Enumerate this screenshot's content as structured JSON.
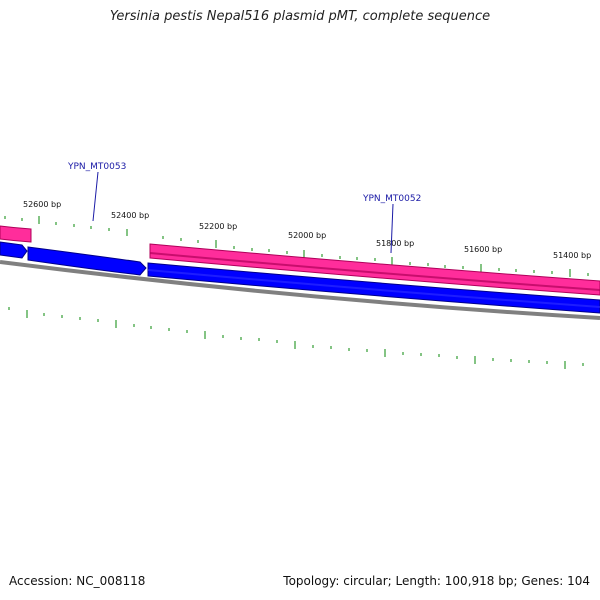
{
  "title": "Yersinia pestis Nepal516 plasmid pMT, complete sequence",
  "accession": "Accession: NC_008118",
  "topology": "Topology: circular; Length: 100,918 bp; Genes: 104",
  "colors": {
    "forward_feature": "#ff2d9b",
    "forward_feature_edge": "#b0005a",
    "cds": "#0000ff",
    "cds_edge": "#00008b",
    "backbone": "#808080",
    "ticks": "#0a8a0a",
    "gene_label": "#1a1aa6"
  },
  "scale_labels": [
    "52600 bp",
    "52400 bp",
    "52200 bp",
    "52000 bp",
    "51800 bp",
    "51600 bp",
    "51400 bp"
  ],
  "gene_labels": [
    "YPN_MT0053",
    "YPN_MT0052"
  ]
}
